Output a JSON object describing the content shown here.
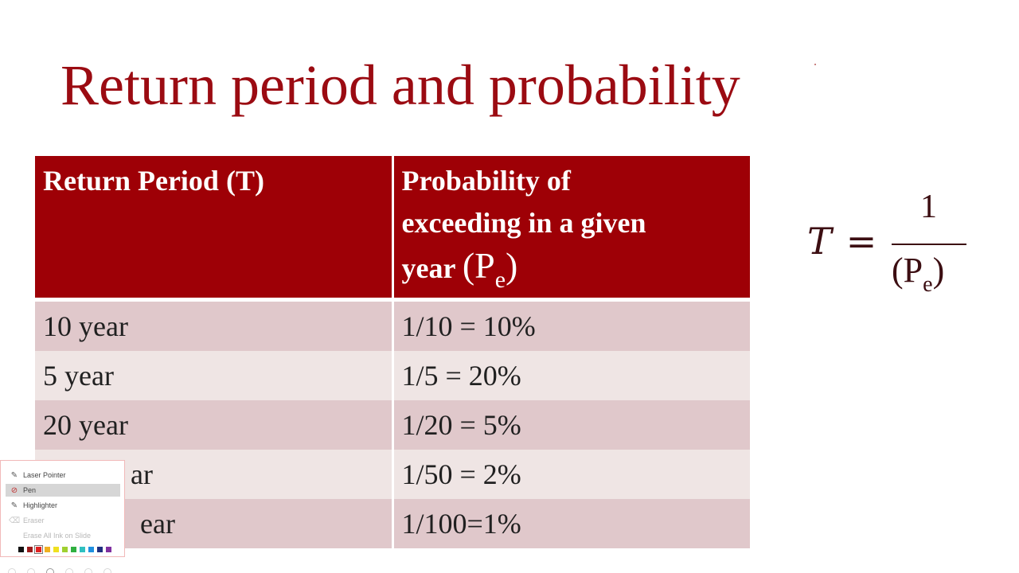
{
  "slide": {
    "title": "Return period and probability"
  },
  "table": {
    "headers": {
      "col1": "Return Period (T)",
      "col2_line1": "Probability of",
      "col2_line2": "exceeding in a given",
      "col2_line3": "year",
      "col2_symbol_open": "(P",
      "col2_symbol_sub": "e",
      "col2_symbol_close": ")"
    },
    "rows": [
      {
        "period": "10 year",
        "probability": "1/10 = 10%"
      },
      {
        "period": "5 year",
        "probability": "1/5 = 20%"
      },
      {
        "period": "20 year",
        "probability": "1/20 = 5%"
      },
      {
        "period": "ar",
        "probability": "1/50 = 2%"
      },
      {
        "period": "ear",
        "probability": "1/100=1%"
      }
    ]
  },
  "formula": {
    "lhs_var": "T",
    "equals": "=",
    "numerator": "1",
    "denominator_open": "(P",
    "denominator_sub": "e",
    "denominator_close": ")"
  },
  "pen_menu": {
    "items": [
      {
        "label": "Laser Pointer",
        "icon": "laser-pointer-icon",
        "state": "normal"
      },
      {
        "label": "Pen",
        "icon": "pen-icon",
        "state": "selected"
      },
      {
        "label": "Highlighter",
        "icon": "highlighter-icon",
        "state": "normal"
      },
      {
        "label": "Eraser",
        "icon": "eraser-icon",
        "state": "disabled"
      },
      {
        "label": "Erase All Ink on Slide",
        "icon": "erase-all-icon",
        "state": "disabled"
      }
    ],
    "colors": [
      "#111111",
      "#9b1b1b",
      "#e02020",
      "#f0b020",
      "#f0e020",
      "#a0d030",
      "#30b040",
      "#30c0c0",
      "#2090e0",
      "#203080",
      "#8030a0"
    ],
    "selected_color": "#e02020"
  }
}
